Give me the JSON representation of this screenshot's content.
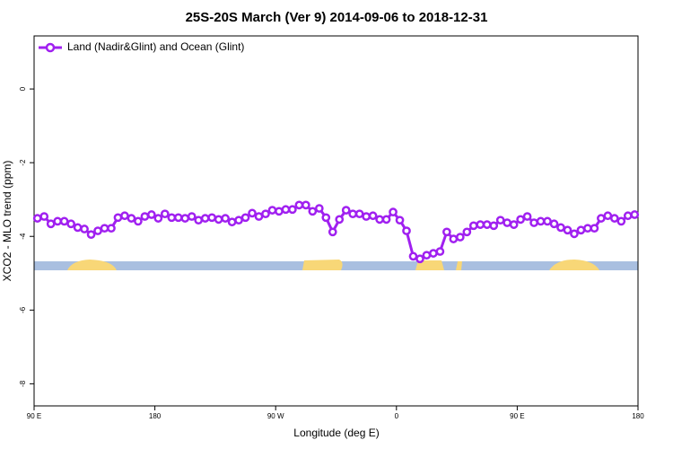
{
  "chart_data": {
    "type": "line",
    "title": "25S-20S March (Ver 9)   2014-09-06 to 2018-12-31",
    "x_label": "Longitude (deg E)",
    "y_label": "XCO2 - MLO trend (ppm)",
    "xlim": [
      90,
      540
    ],
    "ylim": [
      -8.6,
      1.44
    ],
    "xticks": [
      {
        "value": 90,
        "label": "90 E"
      },
      180,
      {
        "value": 270,
        "label": "90 W"
      },
      {
        "value": 360,
        "label": "0"
      },
      {
        "value": 450,
        "label": "90 E"
      },
      {
        "value": 540,
        "label": "180"
      }
    ],
    "yticks": [
      0,
      -2,
      -4,
      -6,
      -8
    ],
    "legend_position": "top-left",
    "x": [
      92.5,
      97.5,
      102.5,
      107.5,
      112.5,
      117.5,
      122.5,
      127.5,
      132.5,
      137.5,
      142.5,
      147.5,
      152.5,
      157.5,
      162.5,
      167.5,
      172.5,
      177.5,
      182.5,
      187.5,
      192.5,
      197.5,
      202.5,
      207.5,
      212.5,
      217.5,
      222.5,
      227.5,
      232.5,
      237.5,
      242.5,
      247.5,
      252.5,
      257.5,
      262.5,
      267.5,
      272.5,
      277.5,
      282.5,
      287.5,
      292.5,
      297.5,
      302.5,
      307.5,
      312.5,
      317.5,
      322.5,
      327.5,
      332.5,
      337.5,
      342.5,
      347.5,
      352.5,
      357.5,
      362.5,
      367.5,
      372.5,
      377.5,
      382.5,
      387.5,
      392.5,
      397.5,
      402.5,
      407.5,
      412.5,
      417.5,
      422.5,
      427.5,
      432.5,
      437.5,
      442.5,
      447.5,
      452.5,
      457.5,
      462.5,
      467.5,
      472.5,
      477.5,
      482.5,
      487.5,
      492.5,
      497.5,
      502.5,
      507.5,
      512.5,
      517.5,
      522.5,
      527.5,
      532.5,
      537.5
    ],
    "series": [
      {
        "name": "Land (Nadir&Glint) and Ocean (Glint)",
        "color": "#a020f0",
        "values": [
          -3.51,
          -3.46,
          -3.66,
          -3.59,
          -3.59,
          -3.66,
          -3.76,
          -3.8,
          -3.95,
          -3.85,
          -3.78,
          -3.78,
          -3.49,
          -3.44,
          -3.51,
          -3.59,
          -3.46,
          -3.41,
          -3.51,
          -3.39,
          -3.49,
          -3.49,
          -3.51,
          -3.46,
          -3.56,
          -3.51,
          -3.49,
          -3.54,
          -3.51,
          -3.61,
          -3.56,
          -3.49,
          -3.37,
          -3.46,
          -3.39,
          -3.29,
          -3.32,
          -3.27,
          -3.27,
          -3.15,
          -3.15,
          -3.32,
          -3.24,
          -3.49,
          -3.88,
          -3.54,
          -3.29,
          -3.39,
          -3.39,
          -3.46,
          -3.44,
          -3.54,
          -3.54,
          -3.34,
          -3.56,
          -3.85,
          -4.54,
          -4.61,
          -4.51,
          -4.46,
          -4.41,
          -3.88,
          -4.07,
          -4.02,
          -3.88,
          -3.71,
          -3.68,
          -3.68,
          -3.71,
          -3.56,
          -3.63,
          -3.68,
          -3.54,
          -3.46,
          -3.63,
          -3.59,
          -3.59,
          -3.66,
          -3.76,
          -3.83,
          -3.93,
          -3.83,
          -3.78,
          -3.78,
          -3.51,
          -3.44,
          -3.51,
          -3.59,
          -3.44,
          -3.41
        ]
      }
    ]
  }
}
